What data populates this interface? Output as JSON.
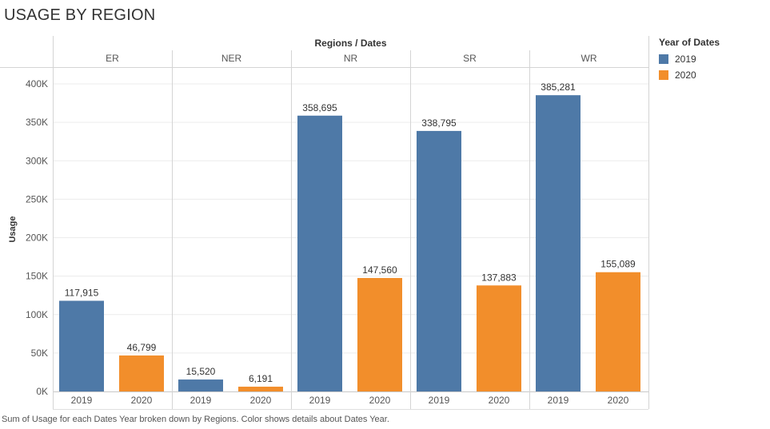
{
  "page": {
    "title": "USAGE BY REGION",
    "caption": "Sum of Usage for each Dates Year broken down by Regions.  Color shows details about Dates Year."
  },
  "legend": {
    "title": "Year of Dates",
    "items": [
      {
        "label": "2019",
        "color": "#4e79a7"
      },
      {
        "label": "2020",
        "color": "#f28e2b"
      }
    ]
  },
  "chart_data": {
    "type": "bar",
    "column_header": "Regions / Dates",
    "ylabel": "Usage",
    "ylim": [
      0,
      420000
    ],
    "yticks": [
      0,
      50000,
      100000,
      150000,
      200000,
      250000,
      300000,
      350000,
      400000
    ],
    "ytick_labels": [
      "0K",
      "50K",
      "100K",
      "150K",
      "200K",
      "250K",
      "300K",
      "350K",
      "400K"
    ],
    "grid": true,
    "legend_position": "right",
    "groups": [
      {
        "region": "ER",
        "bars": [
          {
            "year": "2019",
            "value": 117915,
            "label": "117,915"
          },
          {
            "year": "2020",
            "value": 46799,
            "label": "46,799"
          }
        ]
      },
      {
        "region": "NER",
        "bars": [
          {
            "year": "2019",
            "value": 15520,
            "label": "15,520"
          },
          {
            "year": "2020",
            "value": 6191,
            "label": "6,191"
          }
        ]
      },
      {
        "region": "NR",
        "bars": [
          {
            "year": "2019",
            "value": 358695,
            "label": "358,695"
          },
          {
            "year": "2020",
            "value": 147560,
            "label": "147,560"
          }
        ]
      },
      {
        "region": "SR",
        "bars": [
          {
            "year": "2019",
            "value": 338795,
            "label": "338,795"
          },
          {
            "year": "2020",
            "value": 137883,
            "label": "137,883"
          }
        ]
      },
      {
        "region": "WR",
        "bars": [
          {
            "year": "2019",
            "value": 385281,
            "label": "385,281"
          },
          {
            "year": "2020",
            "value": 155089,
            "label": "155,089"
          }
        ]
      }
    ],
    "series_colors": {
      "2019": "#4e79a7",
      "2020": "#f28e2b"
    }
  }
}
